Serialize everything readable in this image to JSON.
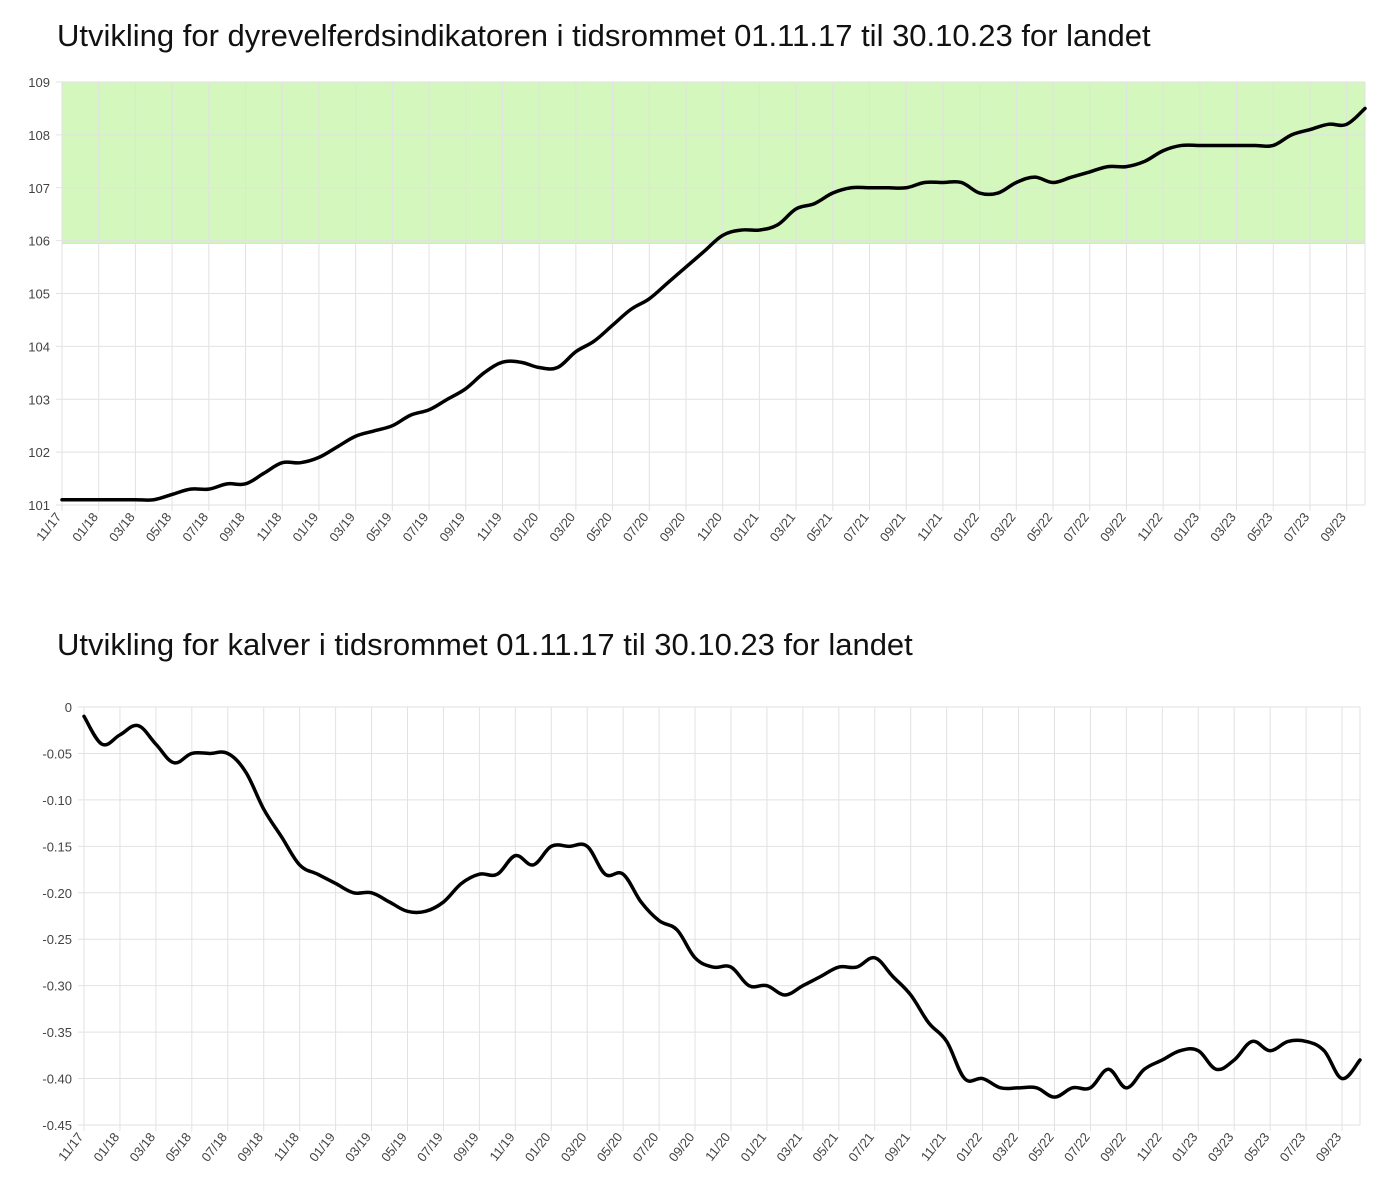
{
  "colors": {
    "line": "#000000",
    "grid": "#e2e2e2",
    "target_band": "#d3f7bc",
    "target_band_edge": "#bfe8a6",
    "axis_text": "#444444",
    "title_text": "#111111"
  },
  "chart_data": [
    {
      "type": "line",
      "title": "Utvikling for dyrevelferdsindikatoren i tidsrommet 01.11.17 til 30.10.23 for landet",
      "xlabel": "",
      "ylabel": "",
      "ylim": [
        101,
        109
      ],
      "grid": true,
      "legend": "none",
      "shaded_band": {
        "y_from": 105.95,
        "y_to": 109,
        "color": "#d3f7bc"
      },
      "x_tick_labels": [
        "11/17",
        "01/18",
        "03/18",
        "05/18",
        "07/18",
        "09/18",
        "11/18",
        "01/19",
        "03/19",
        "05/19",
        "07/19",
        "09/19",
        "11/19",
        "01/20",
        "03/20",
        "05/20",
        "07/20",
        "09/20",
        "11/20",
        "01/21",
        "03/21",
        "05/21",
        "07/21",
        "09/21",
        "11/21",
        "01/22",
        "03/22",
        "05/22",
        "07/22",
        "09/22",
        "11/22",
        "01/23",
        "03/23",
        "05/23",
        "07/23",
        "09/23"
      ],
      "y_tick_labels": [
        "101",
        "102",
        "103",
        "104",
        "105",
        "106",
        "107",
        "108",
        "109"
      ],
      "x": [
        "11/17",
        "12/17",
        "01/18",
        "02/18",
        "03/18",
        "04/18",
        "05/18",
        "06/18",
        "07/18",
        "08/18",
        "09/18",
        "10/18",
        "11/18",
        "12/18",
        "01/19",
        "02/19",
        "03/19",
        "04/19",
        "05/19",
        "06/19",
        "07/19",
        "08/19",
        "09/19",
        "10/19",
        "11/19",
        "12/19",
        "01/20",
        "02/20",
        "03/20",
        "04/20",
        "05/20",
        "06/20",
        "07/20",
        "08/20",
        "09/20",
        "10/20",
        "11/20",
        "12/20",
        "01/21",
        "02/21",
        "03/21",
        "04/21",
        "05/21",
        "06/21",
        "07/21",
        "08/21",
        "09/21",
        "10/21",
        "11/21",
        "12/21",
        "01/22",
        "02/22",
        "03/22",
        "04/22",
        "05/22",
        "06/22",
        "07/22",
        "08/22",
        "09/22",
        "10/22",
        "11/22",
        "12/22",
        "01/23",
        "02/23",
        "03/23",
        "04/23",
        "05/23",
        "06/23",
        "07/23",
        "08/23",
        "09/23",
        "10/23"
      ],
      "series": [
        {
          "values": [
            101.1,
            101.1,
            101.1,
            101.1,
            101.1,
            101.1,
            101.2,
            101.3,
            101.3,
            101.4,
            101.4,
            101.6,
            101.8,
            101.8,
            101.9,
            102.1,
            102.3,
            102.4,
            102.5,
            102.7,
            102.8,
            103.0,
            103.2,
            103.5,
            103.7,
            103.7,
            103.6,
            103.6,
            103.9,
            104.1,
            104.4,
            104.7,
            104.9,
            105.2,
            105.5,
            105.8,
            106.1,
            106.2,
            106.2,
            106.3,
            106.6,
            106.7,
            106.9,
            107.0,
            107.0,
            107.0,
            107.0,
            107.1,
            107.1,
            107.1,
            106.9,
            106.9,
            107.1,
            107.2,
            107.1,
            107.2,
            107.3,
            107.4,
            107.4,
            107.5,
            107.7,
            107.8,
            107.8,
            107.8,
            107.8,
            107.8,
            107.8,
            108.0,
            108.1,
            108.2,
            108.2,
            108.5
          ]
        }
      ]
    },
    {
      "type": "line",
      "title": "Utvikling for kalver i tidsrommet 01.11.17 til 30.10.23 for landet",
      "xlabel": "",
      "ylabel": "",
      "ylim": [
        -0.45,
        0
      ],
      "grid": true,
      "legend": "none",
      "x_tick_labels": [
        "11/17",
        "01/18",
        "03/18",
        "05/18",
        "07/18",
        "09/18",
        "11/18",
        "01/19",
        "03/19",
        "05/19",
        "07/19",
        "09/19",
        "11/19",
        "01/20",
        "03/20",
        "05/20",
        "07/20",
        "09/20",
        "11/20",
        "01/21",
        "03/21",
        "05/21",
        "07/21",
        "09/21",
        "11/21",
        "01/22",
        "03/22",
        "05/22",
        "07/22",
        "09/22",
        "11/22",
        "01/23",
        "03/23",
        "05/23",
        "07/23",
        "09/23"
      ],
      "y_tick_labels": [
        "0",
        "-0.05",
        "-0.10",
        "-0.15",
        "-0.20",
        "-0.25",
        "-0.30",
        "-0.35",
        "-0.40",
        "-0.45"
      ],
      "x": [
        "11/17",
        "12/17",
        "01/18",
        "02/18",
        "03/18",
        "04/18",
        "05/18",
        "06/18",
        "07/18",
        "08/18",
        "09/18",
        "10/18",
        "11/18",
        "12/18",
        "01/19",
        "02/19",
        "03/19",
        "04/19",
        "05/19",
        "06/19",
        "07/19",
        "08/19",
        "09/19",
        "10/19",
        "11/19",
        "12/19",
        "01/20",
        "02/20",
        "03/20",
        "04/20",
        "05/20",
        "06/20",
        "07/20",
        "08/20",
        "09/20",
        "10/20",
        "11/20",
        "12/20",
        "01/21",
        "02/21",
        "03/21",
        "04/21",
        "05/21",
        "06/21",
        "07/21",
        "08/21",
        "09/21",
        "10/21",
        "11/21",
        "12/21",
        "01/22",
        "02/22",
        "03/22",
        "04/22",
        "05/22",
        "06/22",
        "07/22",
        "08/22",
        "09/22",
        "10/22",
        "11/22",
        "12/22",
        "01/23",
        "02/23",
        "03/23",
        "04/23",
        "05/23",
        "06/23",
        "07/23",
        "08/23",
        "09/23",
        "10/23"
      ],
      "series": [
        {
          "values": [
            -0.01,
            -0.04,
            -0.03,
            -0.02,
            -0.04,
            -0.06,
            -0.05,
            -0.05,
            -0.05,
            -0.07,
            -0.11,
            -0.14,
            -0.17,
            -0.18,
            -0.19,
            -0.2,
            -0.2,
            -0.21,
            -0.22,
            -0.22,
            -0.21,
            -0.19,
            -0.18,
            -0.18,
            -0.16,
            -0.17,
            -0.15,
            -0.15,
            -0.15,
            -0.18,
            -0.18,
            -0.21,
            -0.23,
            -0.24,
            -0.27,
            -0.28,
            -0.28,
            -0.3,
            -0.3,
            -0.31,
            -0.3,
            -0.29,
            -0.28,
            -0.28,
            -0.27,
            -0.29,
            -0.31,
            -0.34,
            -0.36,
            -0.4,
            -0.4,
            -0.41,
            -0.41,
            -0.41,
            -0.42,
            -0.41,
            -0.41,
            -0.39,
            -0.41,
            -0.39,
            -0.38,
            -0.37,
            -0.37,
            -0.39,
            -0.38,
            -0.36,
            -0.37,
            -0.36,
            -0.36,
            -0.37,
            -0.4,
            -0.38
          ]
        }
      ]
    }
  ]
}
